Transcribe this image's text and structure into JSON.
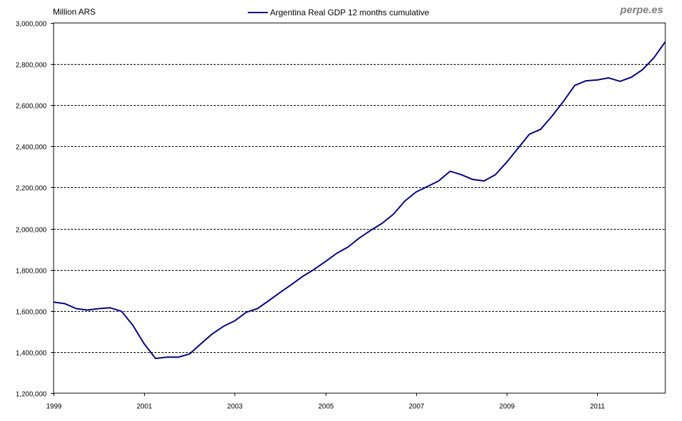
{
  "chart_data": {
    "type": "line",
    "title": "",
    "ylabel": "Million ARS",
    "xlabel": "",
    "watermark": "perpe.es",
    "legend": {
      "placement": "top-center",
      "entries": [
        "Argentina Real GDP 12 months cumulative"
      ]
    },
    "ylim": [
      1200000,
      3000000
    ],
    "xlim": [
      1999,
      2012.5
    ],
    "yticks": [
      1200000,
      1400000,
      1600000,
      1800000,
      2000000,
      2200000,
      2400000,
      2600000,
      2800000,
      3000000
    ],
    "ytick_labels": [
      "1,200,000",
      "1,400,000",
      "1,600,000",
      "1,800,000",
      "2,000,000",
      "2,200,000",
      "2,400,000",
      "2,600,000",
      "2,800,000",
      "3,000,000"
    ],
    "xticks": [
      1999,
      2001,
      2003,
      2005,
      2007,
      2009,
      2011
    ],
    "xtick_labels": [
      "1999",
      "2001",
      "2003",
      "2005",
      "2007",
      "2009",
      "2011"
    ],
    "grid": "horizontal dashed",
    "series": [
      {
        "name": "Argentina Real GDP 12 months cumulative",
        "color": "#000080",
        "x_start": 1999,
        "x_step": 0.25,
        "values": [
          1643000,
          1635000,
          1611000,
          1604000,
          1611000,
          1615000,
          1598000,
          1530000,
          1440000,
          1369000,
          1375000,
          1375000,
          1390000,
          1440000,
          1488000,
          1525000,
          1552000,
          1593000,
          1611000,
          1650000,
          1690000,
          1728000,
          1768000,
          1802000,
          1840000,
          1880000,
          1911000,
          1955000,
          1992000,
          2026000,
          2070000,
          2134000,
          2178000,
          2205000,
          2232000,
          2279000,
          2262000,
          2239000,
          2232000,
          2262000,
          2323000,
          2391000,
          2459000,
          2483000,
          2547000,
          2618000,
          2696000,
          2719000,
          2723000,
          2733000,
          2716000,
          2736000,
          2773000,
          2831000,
          2909000
        ]
      }
    ]
  }
}
